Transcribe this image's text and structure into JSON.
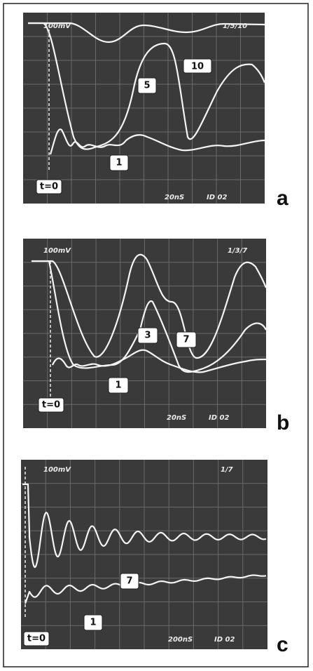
{
  "panels": [
    {
      "scale": "100mV",
      "traces_id": "1/5/10",
      "trace_labels": [
        "10",
        "5",
        "1"
      ],
      "t0": "t=0",
      "timebase": "20nS",
      "id": "ID 02",
      "letter": "a"
    },
    {
      "scale": "100mV",
      "traces_id": "1/3/7",
      "trace_labels": [
        "3",
        "7",
        "1"
      ],
      "t0": "t=0",
      "timebase": "20nS",
      "id": "ID 02",
      "letter": "b"
    },
    {
      "scale": "100mV",
      "traces_id": "1/7",
      "trace_labels": [
        "7",
        "1"
      ],
      "t0": "t=0",
      "timebase": "200nS",
      "id": "ID 02",
      "letter": "c"
    }
  ]
}
